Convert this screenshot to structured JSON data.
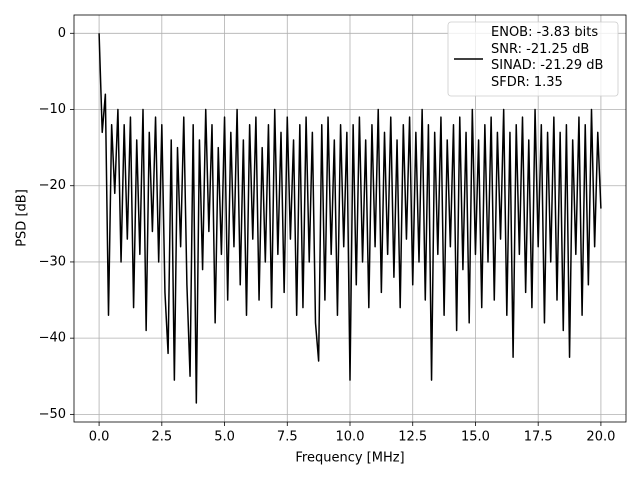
{
  "chart_data": {
    "type": "line",
    "x_label": "Frequency [MHz]",
    "y_label": "PSD [dB]",
    "xlim": [
      -1,
      21
    ],
    "ylim": [
      -51,
      2.4
    ],
    "xticks": [
      {
        "value": 0,
        "label": "0.0"
      },
      2.5,
      {
        "value": 5,
        "label": "5.0"
      },
      7.5,
      {
        "value": 10,
        "label": "10.0"
      },
      12.5,
      {
        "value": 15,
        "label": "15.0"
      },
      17.5,
      {
        "value": 20,
        "label": "20.0"
      }
    ],
    "yticks": [
      {
        "value": -50,
        "label": "−50"
      },
      {
        "value": -40,
        "label": "−40"
      },
      {
        "value": -30,
        "label": "−30"
      },
      {
        "value": -20,
        "label": "−20"
      },
      {
        "value": -10,
        "label": "−10"
      },
      0
    ],
    "grid": true,
    "legend": "upper right",
    "x": [
      0,
      0.125,
      0.25,
      0.375,
      0.5,
      0.625,
      0.75,
      0.875,
      1,
      1.125,
      1.25,
      1.375,
      1.5,
      1.625,
      1.75,
      1.875,
      2,
      2.125,
      2.25,
      2.375,
      2.5,
      2.625,
      2.75,
      2.875,
      3,
      3.125,
      3.25,
      3.375,
      3.5,
      3.625,
      3.75,
      3.875,
      4,
      4.125,
      4.25,
      4.375,
      4.5,
      4.625,
      4.75,
      4.875,
      5,
      5.125,
      5.25,
      5.375,
      5.5,
      5.625,
      5.75,
      5.875,
      6,
      6.125,
      6.25,
      6.375,
      6.5,
      6.625,
      6.75,
      6.875,
      7,
      7.125,
      7.25,
      7.375,
      7.5,
      7.625,
      7.75,
      7.875,
      8,
      8.125,
      8.25,
      8.375,
      8.5,
      8.625,
      8.75,
      8.875,
      9,
      9.125,
      9.25,
      9.375,
      9.5,
      9.625,
      9.75,
      9.875,
      10,
      10.125,
      10.25,
      10.375,
      10.5,
      10.625,
      10.75,
      10.875,
      11,
      11.125,
      11.25,
      11.375,
      11.5,
      11.625,
      11.75,
      11.875,
      12,
      12.125,
      12.25,
      12.375,
      12.5,
      12.625,
      12.75,
      12.875,
      13,
      13.125,
      13.25,
      13.375,
      13.5,
      13.625,
      13.75,
      13.875,
      14,
      14.125,
      14.25,
      14.375,
      14.5,
      14.625,
      14.75,
      14.875,
      15,
      15.125,
      15.25,
      15.375,
      15.5,
      15.625,
      15.75,
      15.875,
      16,
      16.125,
      16.25,
      16.375,
      16.5,
      16.625,
      16.75,
      16.875,
      17,
      17.125,
      17.25,
      17.375,
      17.5,
      17.625,
      17.75,
      17.875,
      18,
      18.125,
      18.25,
      18.375,
      18.5,
      18.625,
      18.75,
      18.875,
      19,
      19.125,
      19.25,
      19.375,
      19.5,
      19.625,
      19.75,
      19.875,
      20
    ],
    "series": [
      {
        "name": "ENOB: -3.83 bits\nSNR: -21.25 dB\nSINAD: -21.29 dB\nSFDR: 1.35",
        "color": "#000000",
        "values": [
          0,
          -13,
          -8,
          -37,
          -12,
          -21,
          -10,
          -30,
          -12,
          -27,
          -11,
          -36,
          -14,
          -29,
          -10,
          -39,
          -13,
          -26,
          -11,
          -30,
          -12,
          -34,
          -42,
          -14,
          -45.5,
          -15,
          -28,
          -11,
          -33,
          -45,
          -12,
          -48.5,
          -14,
          -31,
          -10,
          -26,
          -12,
          -38,
          -15,
          -29,
          -11,
          -35,
          -13,
          -28,
          -10,
          -33,
          -14,
          -37,
          -12,
          -27,
          -11,
          -35,
          -15,
          -30,
          -12,
          -36,
          -10,
          -29,
          -13,
          -34,
          -11,
          -27,
          -14,
          -37,
          -12,
          -36,
          -11,
          -30,
          -13,
          -38,
          -43,
          -12,
          -35,
          -11,
          -29,
          -14,
          -37,
          -12,
          -28,
          -13,
          -45.5,
          -12,
          -33,
          -11,
          -30,
          -14,
          -36,
          -12,
          -28,
          -10,
          -34,
          -13,
          -29,
          -11,
          -32,
          -14,
          -36,
          -12,
          -27,
          -11,
          -33,
          -13,
          -30,
          -10,
          -35,
          -12,
          -45.5,
          -13,
          -29,
          -11,
          -37,
          -14,
          -28,
          -12,
          -39,
          -11,
          -31,
          -13,
          -38,
          -10,
          -29,
          -14,
          -36,
          -12,
          -30,
          -11,
          -35,
          -13,
          -27,
          -10,
          -37,
          -13,
          -42.5,
          -12,
          -29,
          -11,
          -34,
          -14,
          -36,
          -10,
          -28,
          -12,
          -38,
          -13,
          -30,
          -11,
          -35,
          -13,
          -39,
          -12,
          -42.5,
          -14,
          -29,
          -11,
          -37,
          -12,
          -33,
          -10,
          -28,
          -13,
          -23
        ]
      }
    ]
  }
}
